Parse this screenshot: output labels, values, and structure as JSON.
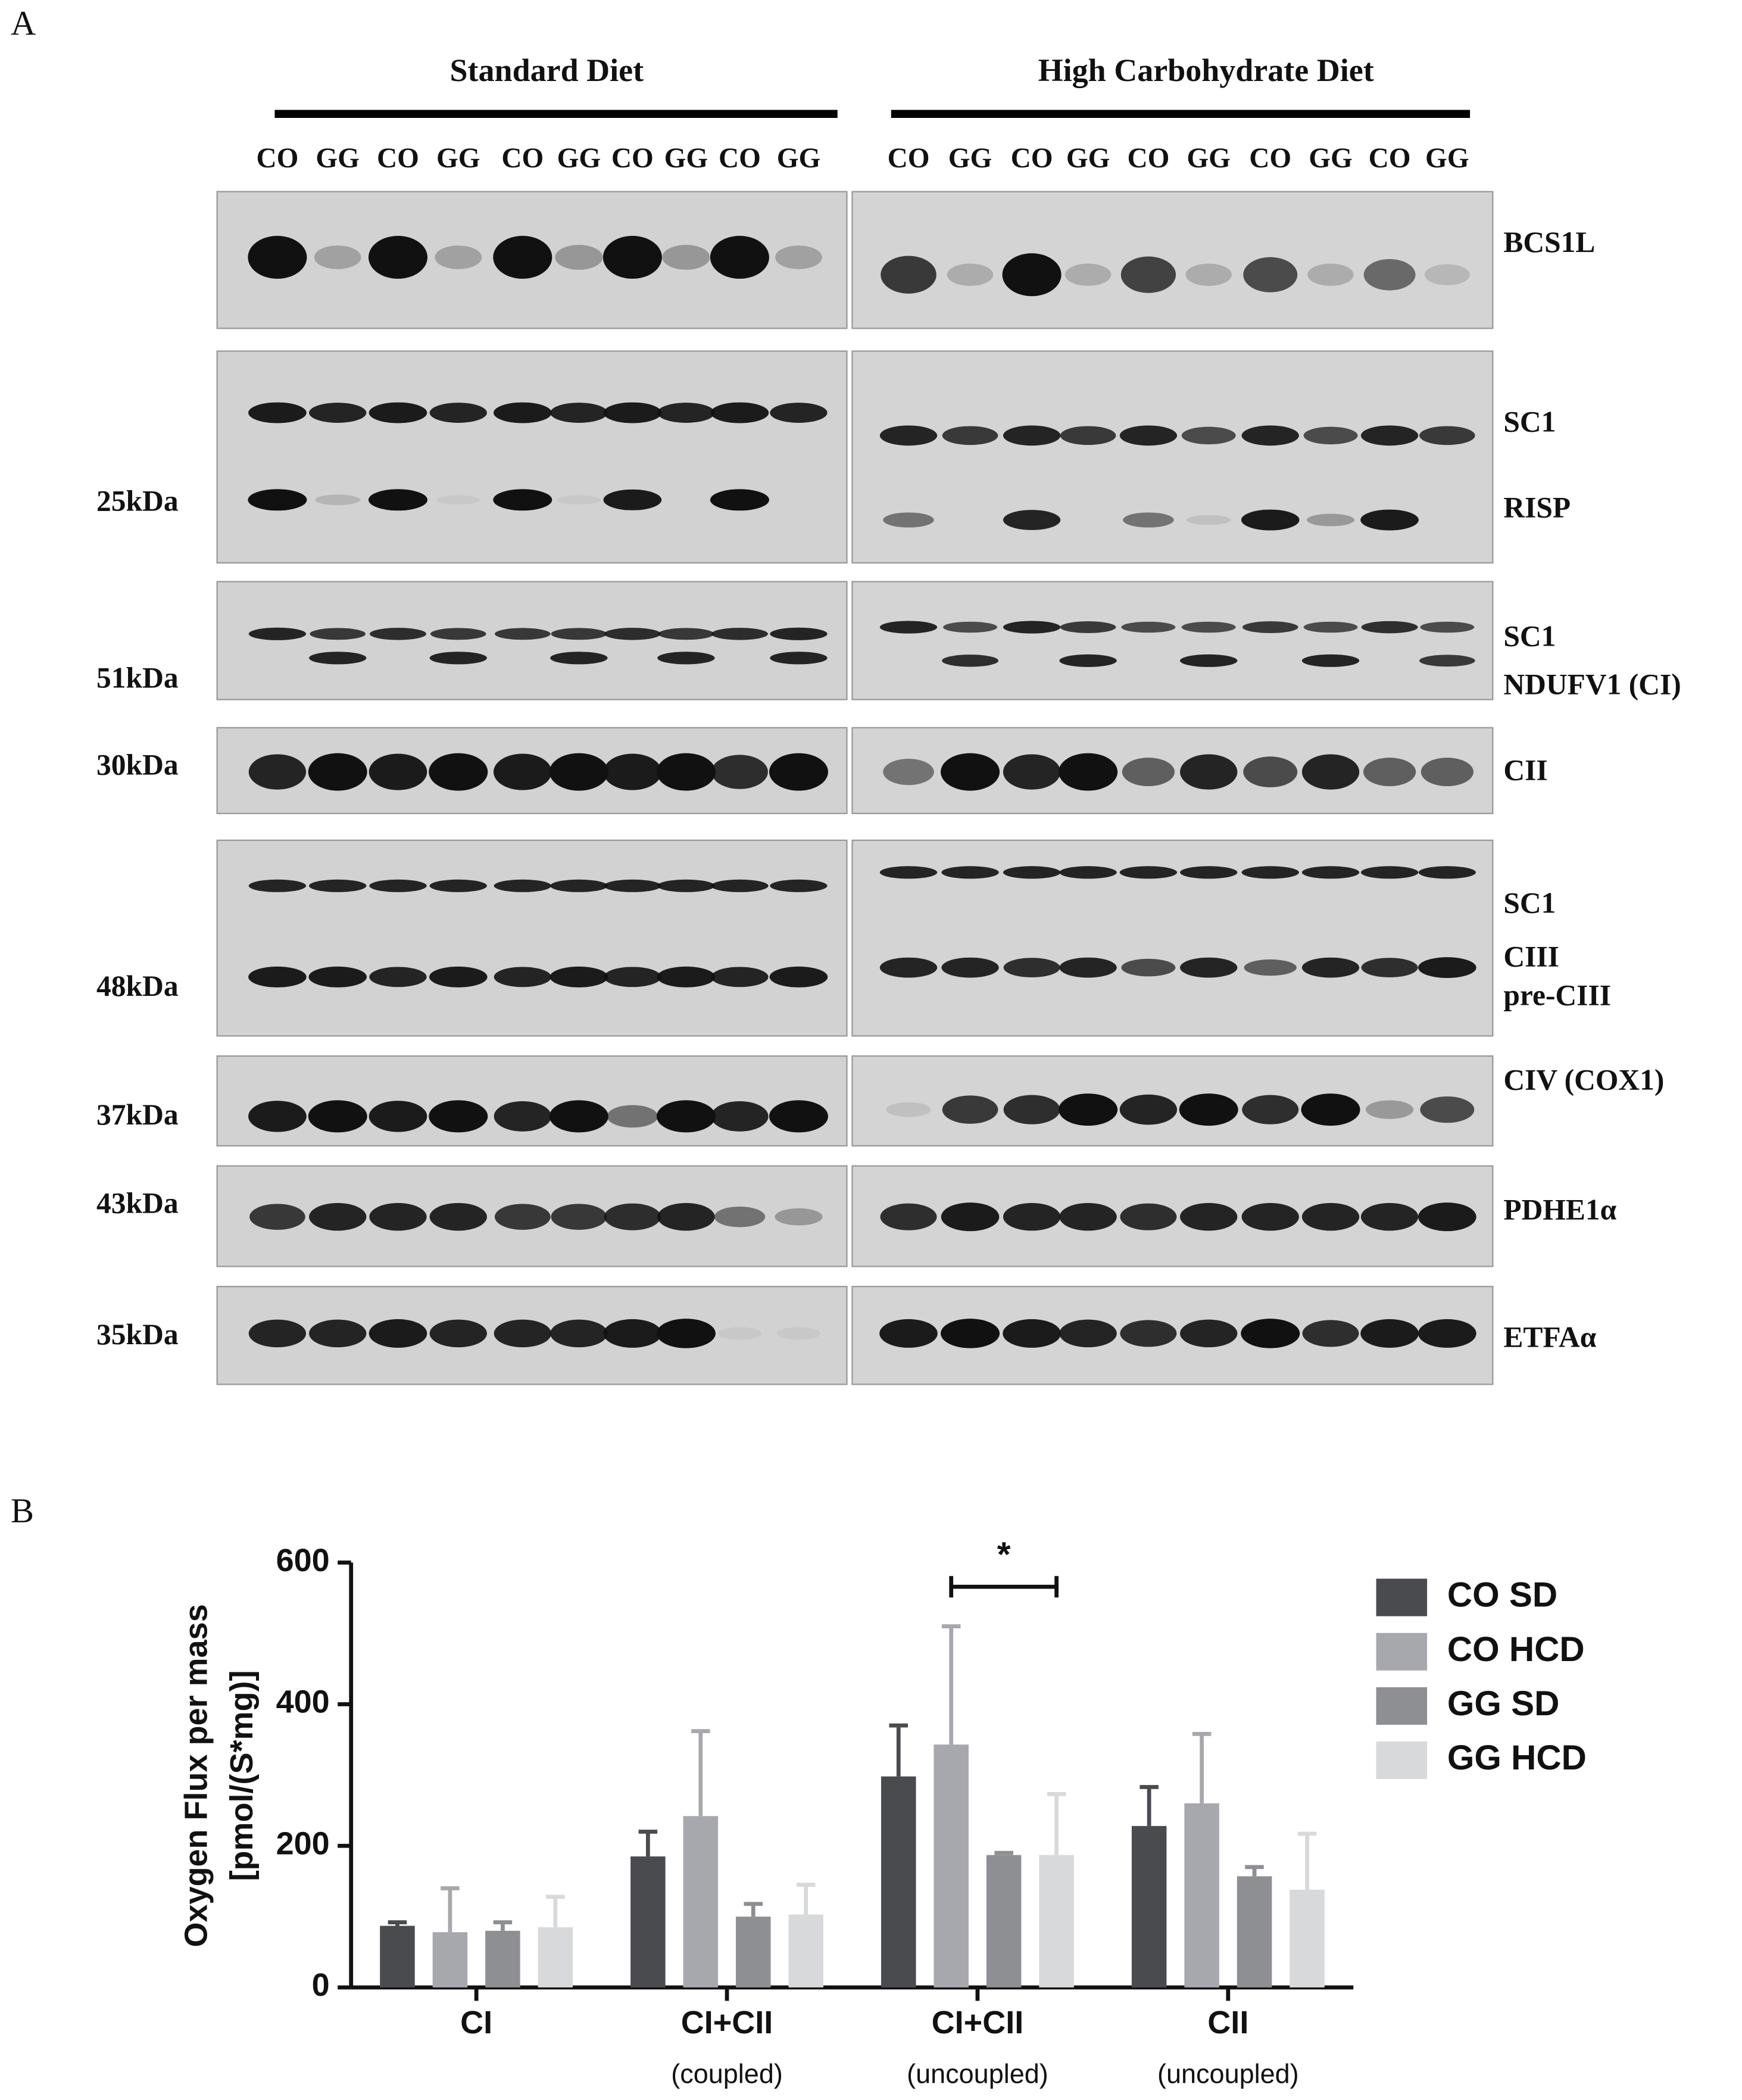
{
  "panel_a": {
    "label": "A",
    "groups": [
      {
        "title": "Standard Diet",
        "lanes": [
          "CO",
          "GG",
          "CO",
          "GG",
          "CO",
          "GG",
          "CO",
          "GG",
          "CO",
          "GG"
        ]
      },
      {
        "title": "High Carbohydrate Diet",
        "lanes": [
          "CO",
          "GG",
          "CO",
          "GG",
          "CO",
          "GG",
          "CO",
          "GG",
          "CO",
          "GG"
        ]
      }
    ],
    "proteins": [
      "BCS1L",
      "SC1",
      "RISP",
      "SC1",
      "NDUFV1 (CI)",
      "CII",
      "SC1",
      "CIII",
      "pre-CIII",
      "CIV (COX1)",
      "PDHE1α",
      "ETFAα"
    ],
    "markers": [
      "25kDa",
      "51kDa",
      "30kDa",
      "48kDa",
      "37kDa",
      "43kDa",
      "35kDa"
    ]
  },
  "chart_data": {
    "type": "bar",
    "panel_label": "B",
    "ylabel": [
      "Oxygen Flux per mass",
      "[pmol/(S*mg)]"
    ],
    "categories": [
      "CI",
      "CI+CII",
      "CI+CII",
      "CII"
    ],
    "category_notes": [
      null,
      "(coupled)",
      "(uncoupled)",
      "(uncoupled)"
    ],
    "series": [
      {
        "name": "CO SD",
        "color": "#4a4b4f",
        "values": [
          87,
          185,
          298,
          228
        ],
        "errors": [
          5,
          35,
          72,
          55
        ]
      },
      {
        "name": "CO HCD",
        "color": "#a7a8ad",
        "values": [
          78,
          242,
          343,
          260
        ],
        "errors": [
          62,
          120,
          167,
          98
        ]
      },
      {
        "name": "GG SD",
        "color": "#8e8f93",
        "values": [
          80,
          100,
          187,
          157
        ],
        "errors": [
          12,
          18,
          3,
          13
        ]
      },
      {
        "name": "GG HCD",
        "color": "#d8d9db",
        "values": [
          85,
          103,
          187,
          138
        ],
        "errors": [
          43,
          42,
          86,
          79
        ]
      }
    ],
    "annotation": "*",
    "ylim": [
      0,
      600
    ],
    "yticks": [
      0,
      200,
      400,
      600
    ],
    "grid": false,
    "legend": "right"
  }
}
